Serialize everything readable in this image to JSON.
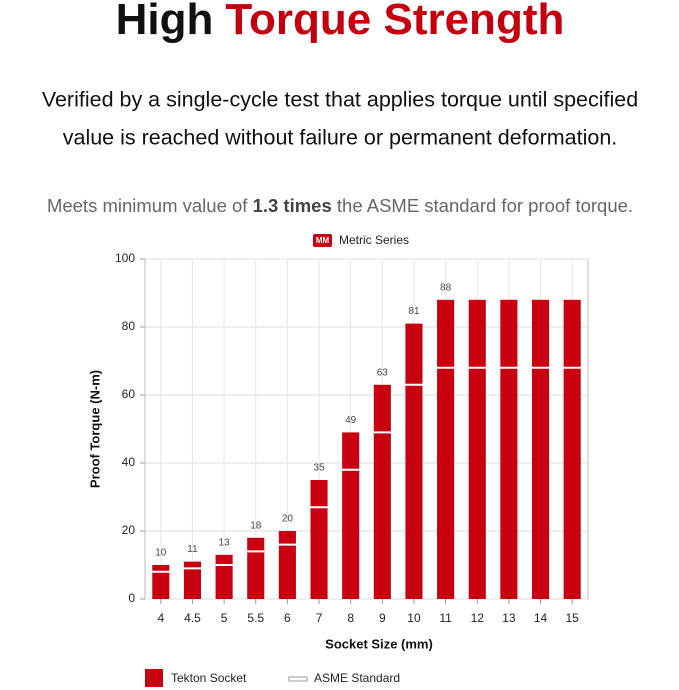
{
  "header": {
    "title_part1": "High",
    "title_part2": "Torque Strength",
    "description_lines": [
      "Verified by a single-cycle test that applies torque until specified",
      "value is reached without failure or permanent deformation."
    ],
    "note_part1": "Meets minimum value of ",
    "note_bold": "1.3 times",
    "note_part2": " the ASME standard for proof torque."
  },
  "chart_data": {
    "type": "bar",
    "badge": "MM",
    "title": "Metric Series",
    "x_label": "Socket Size (mm)",
    "y_label": "Proof Torque (N-m)",
    "categories": [
      "4",
      "4.5",
      "5",
      "5.5",
      "6",
      "7",
      "8",
      "9",
      "10",
      "11",
      "12",
      "13",
      "14",
      "15"
    ],
    "series": [
      {
        "name": "Tekton Socket",
        "color": "#c8000f",
        "values": [
          10,
          11,
          13,
          18,
          20,
          35,
          49,
          63,
          81,
          88,
          88,
          88,
          88,
          88
        ],
        "value_labels": [
          "10",
          "11",
          "13",
          "18",
          "20",
          "35",
          "49",
          "63",
          "81",
          "88",
          null,
          null,
          null,
          null
        ]
      },
      {
        "name": "ASME Standard",
        "color": "#ffffff",
        "values": [
          8,
          9,
          10,
          14,
          16,
          27,
          38,
          49,
          63,
          68,
          68,
          68,
          68,
          68
        ]
      }
    ],
    "ylim": [
      0,
      100
    ],
    "yticks": [
      0,
      20,
      40,
      60,
      80,
      100
    ],
    "grid": true
  }
}
